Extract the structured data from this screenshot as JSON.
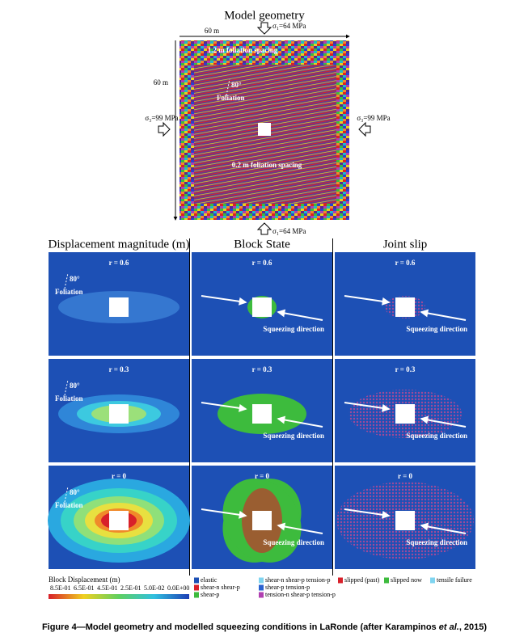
{
  "geometry": {
    "title": "Model geometry",
    "width_label": "60 m",
    "height_label": "60 m",
    "stress_top": "σ₁=64 MPa",
    "stress_left": "σ₃=99 MPa",
    "stress_right": "σ₃=99 MPa",
    "stress_bottom": "σ₁=64 MPa",
    "top_spacing": "1.2 m foliation spacing",
    "foliation_angle": "80°",
    "foliation_label": "Foliation",
    "inner_spacing": "0.2 m foliation spacing"
  },
  "panels": {
    "columns": [
      "Displacement magnitude (m)",
      "Block State",
      "Joint slip"
    ],
    "rows": [
      "r = 0.6",
      "r = 0.3",
      "r = 0"
    ],
    "foliation_angle": "80°",
    "foliation_label": "Foliation",
    "squeeze_label": "Squeezing direction"
  },
  "legends": {
    "displacement": {
      "title": "Block Displacement (m)",
      "ticks": [
        "8.5E-01",
        "6.5E-01",
        "4.5E-01",
        "2.5E-01",
        "5.0E-02",
        "0.0E+00"
      ]
    },
    "block_state": [
      {
        "label": "elastic",
        "color": "#1d50b5"
      },
      {
        "label": "shear-n shear-p",
        "color": "#d8202a"
      },
      {
        "label": "shear-p",
        "color": "#3dbb3d"
      },
      {
        "label": "shear-n shear-p tension-p",
        "color": "#7fd4f0"
      },
      {
        "label": "shear-p tension-p",
        "color": "#2a62d0"
      },
      {
        "label": "tension-n shear-p tension-p",
        "color": "#b040b0"
      }
    ],
    "joint_slip": [
      {
        "label": "slipped (past)",
        "color": "#d8202a"
      },
      {
        "label": "slipped now",
        "color": "#3dbb3d"
      },
      {
        "label": "tensile failure",
        "color": "#7fd4f0"
      }
    ]
  },
  "caption": {
    "prefix": "Figure 4—Model geometry and modelled squeezing conditions in LaRonde (after Karampinos ",
    "italic": "et al.",
    "suffix": ", 2015)"
  }
}
